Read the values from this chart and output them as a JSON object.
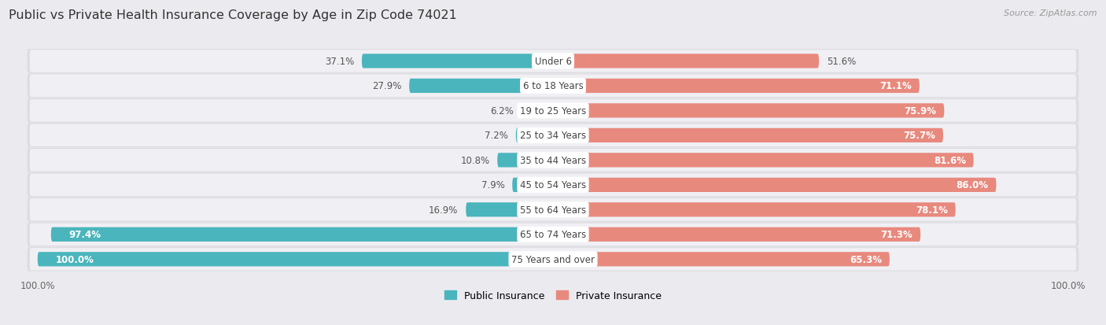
{
  "title": "PUBLIC VS PRIVATE HEALTH INSURANCE COVERAGE BY AGE IN ZIP CODE 74021",
  "source": "Source: ZipAtlas.com",
  "categories": [
    "Under 6",
    "6 to 18 Years",
    "19 to 25 Years",
    "25 to 34 Years",
    "35 to 44 Years",
    "45 to 54 Years",
    "55 to 64 Years",
    "65 to 74 Years",
    "75 Years and over"
  ],
  "public_values": [
    37.1,
    27.9,
    6.2,
    7.2,
    10.8,
    7.9,
    16.9,
    97.4,
    100.0
  ],
  "private_values": [
    51.6,
    71.1,
    75.9,
    75.7,
    81.6,
    86.0,
    78.1,
    71.3,
    65.3
  ],
  "public_color": "#4ab5bc",
  "private_color": "#e8897e",
  "row_bg_color": "#e8e8ec",
  "bar_bg_color": "#f5f5f8",
  "background_color": "#ebebef",
  "bar_height": 0.58,
  "title_fontsize": 11.5,
  "label_fontsize": 8.5,
  "cat_fontsize": 8.5,
  "tick_fontsize": 8.5,
  "legend_fontsize": 9,
  "scale": 100
}
